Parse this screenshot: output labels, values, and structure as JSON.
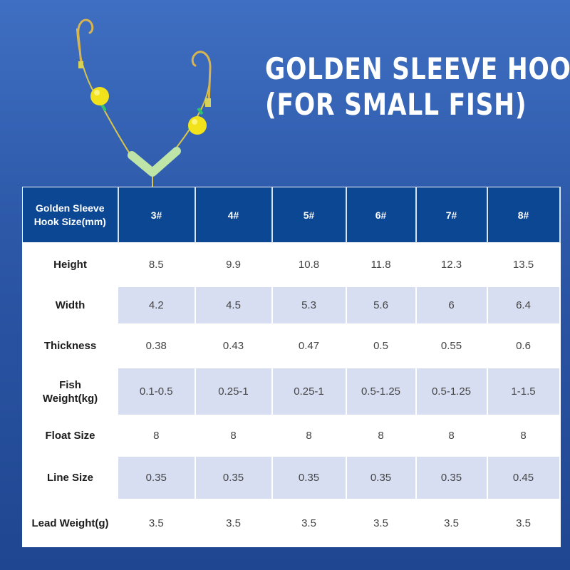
{
  "title": {
    "line1": "GOLDEN SLEEVE HOOK",
    "line2": "(FOR SMALL FISH)"
  },
  "illustration": {
    "icon": "fishing-rig-icon",
    "colors": {
      "hook": "#d7b451",
      "float": "#f2e21c",
      "line": "#d8c64a",
      "sleeve": "#bfe4a8",
      "knot": "#2ec46b"
    }
  },
  "table": {
    "corner_header": [
      "Golden Sleeve",
      "Hook Size(mm)"
    ],
    "sizes": [
      "3#",
      "4#",
      "5#",
      "6#",
      "7#",
      "8#"
    ],
    "rows": [
      {
        "label": [
          "Height"
        ],
        "values": [
          "8.5",
          "9.9",
          "10.8",
          "11.8",
          "12.3",
          "13.5"
        ]
      },
      {
        "label": [
          "Width"
        ],
        "values": [
          "4.2",
          "4.5",
          "5.3",
          "5.6",
          "6",
          "6.4"
        ]
      },
      {
        "label": [
          "Thickness"
        ],
        "values": [
          "0.38",
          "0.43",
          "0.47",
          "0.5",
          "0.55",
          "0.6"
        ]
      },
      {
        "label": [
          "Fish",
          "Weight(kg)"
        ],
        "values": [
          "0.1-0.5",
          "0.25-1",
          "0.25-1",
          "0.5-1.25",
          "0.5-1.25",
          "1-1.5"
        ]
      },
      {
        "label": [
          "Float Size"
        ],
        "values": [
          "8",
          "8",
          "8",
          "8",
          "8",
          "8"
        ]
      },
      {
        "label": [
          "Line Size"
        ],
        "values": [
          "0.35",
          "0.35",
          "0.35",
          "0.35",
          "0.35",
          "0.45"
        ]
      },
      {
        "label": [
          "Lead Weight(g)"
        ],
        "values": [
          "3.5",
          "3.5",
          "3.5",
          "3.5",
          "3.5",
          "3.5"
        ]
      }
    ]
  },
  "colors": {
    "header_bg": "#0c4794",
    "alt_row_bg": "#d7def2",
    "page_bg": "#2d58a8"
  }
}
